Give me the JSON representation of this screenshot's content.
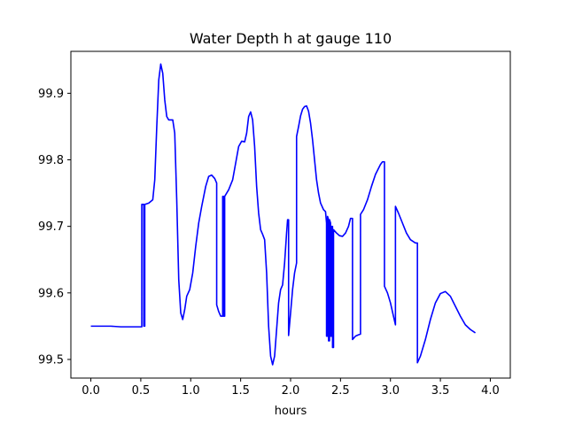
{
  "chart_data": {
    "type": "line",
    "title": "Water Depth h at gauge 110",
    "xlabel": "hours",
    "ylabel": "",
    "xlim": [
      -0.2,
      4.2
    ],
    "ylim": [
      99.472,
      99.963
    ],
    "xticks": [
      0.0,
      0.5,
      1.0,
      1.5,
      2.0,
      2.5,
      3.0,
      3.5,
      4.0
    ],
    "xtick_labels": [
      "0.0",
      "0.5",
      "1.0",
      "1.5",
      "2.0",
      "2.5",
      "3.0",
      "3.5",
      "4.0"
    ],
    "yticks": [
      99.5,
      99.6,
      99.7,
      99.8,
      99.9
    ],
    "ytick_labels": [
      "99.5",
      "99.6",
      "99.7",
      "99.8",
      "99.9"
    ],
    "grid": false,
    "series": [
      {
        "color": "#0000ff",
        "points": [
          [
            0.0,
            99.55
          ],
          [
            0.2,
            99.55
          ],
          [
            0.3,
            99.549
          ],
          [
            0.4,
            99.549
          ],
          [
            0.5,
            99.549
          ],
          [
            0.51,
            99.549
          ],
          [
            0.51,
            99.733
          ],
          [
            0.53,
            99.733
          ],
          [
            0.53,
            99.55
          ],
          [
            0.54,
            99.55
          ],
          [
            0.54,
            99.733
          ],
          [
            0.58,
            99.735
          ],
          [
            0.62,
            99.74
          ],
          [
            0.64,
            99.77
          ],
          [
            0.66,
            99.85
          ],
          [
            0.68,
            99.92
          ],
          [
            0.7,
            99.944
          ],
          [
            0.72,
            99.93
          ],
          [
            0.74,
            99.89
          ],
          [
            0.76,
            99.865
          ],
          [
            0.78,
            99.86
          ],
          [
            0.82,
            99.86
          ],
          [
            0.84,
            99.84
          ],
          [
            0.86,
            99.74
          ],
          [
            0.88,
            99.62
          ],
          [
            0.9,
            99.57
          ],
          [
            0.92,
            99.56
          ],
          [
            0.94,
            99.575
          ],
          [
            0.96,
            99.595
          ],
          [
            0.99,
            99.605
          ],
          [
            1.02,
            99.63
          ],
          [
            1.05,
            99.67
          ],
          [
            1.08,
            99.705
          ],
          [
            1.11,
            99.73
          ],
          [
            1.15,
            99.76
          ],
          [
            1.18,
            99.775
          ],
          [
            1.21,
            99.777
          ],
          [
            1.24,
            99.772
          ],
          [
            1.26,
            99.765
          ],
          [
            1.26,
            99.582
          ],
          [
            1.28,
            99.572
          ],
          [
            1.3,
            99.565
          ],
          [
            1.32,
            99.565
          ],
          [
            1.32,
            99.745
          ],
          [
            1.33,
            99.745
          ],
          [
            1.33,
            99.565
          ],
          [
            1.34,
            99.565
          ],
          [
            1.34,
            99.745
          ],
          [
            1.38,
            99.755
          ],
          [
            1.42,
            99.77
          ],
          [
            1.45,
            99.795
          ],
          [
            1.48,
            99.82
          ],
          [
            1.51,
            99.828
          ],
          [
            1.54,
            99.827
          ],
          [
            1.56,
            99.84
          ],
          [
            1.58,
            99.865
          ],
          [
            1.6,
            99.872
          ],
          [
            1.62,
            99.86
          ],
          [
            1.64,
            99.82
          ],
          [
            1.66,
            99.76
          ],
          [
            1.68,
            99.72
          ],
          [
            1.7,
            99.695
          ],
          [
            1.72,
            99.688
          ],
          [
            1.74,
            99.68
          ],
          [
            1.76,
            99.63
          ],
          [
            1.78,
            99.55
          ],
          [
            1.8,
            99.505
          ],
          [
            1.82,
            99.492
          ],
          [
            1.84,
            99.505
          ],
          [
            1.86,
            99.545
          ],
          [
            1.88,
            99.585
          ],
          [
            1.9,
            99.605
          ],
          [
            1.92,
            99.612
          ],
          [
            1.94,
            99.645
          ],
          [
            1.96,
            99.69
          ],
          [
            1.97,
            99.71
          ],
          [
            1.98,
            99.71
          ],
          [
            1.98,
            99.536
          ],
          [
            2.0,
            99.57
          ],
          [
            2.02,
            99.605
          ],
          [
            2.04,
            99.63
          ],
          [
            2.06,
            99.645
          ],
          [
            2.06,
            99.835
          ],
          [
            2.08,
            99.85
          ],
          [
            2.1,
            99.866
          ],
          [
            2.12,
            99.876
          ],
          [
            2.14,
            99.88
          ],
          [
            2.16,
            99.881
          ],
          [
            2.18,
            99.873
          ],
          [
            2.2,
            99.855
          ],
          [
            2.22,
            99.83
          ],
          [
            2.24,
            99.8
          ],
          [
            2.26,
            99.77
          ],
          [
            2.28,
            99.75
          ],
          [
            2.3,
            99.735
          ],
          [
            2.33,
            99.725
          ],
          [
            2.35,
            99.722
          ],
          [
            2.36,
            99.705
          ],
          [
            2.36,
            99.535
          ],
          [
            2.37,
            99.535
          ],
          [
            2.37,
            99.715
          ],
          [
            2.38,
            99.71
          ],
          [
            2.38,
            99.528
          ],
          [
            2.39,
            99.528
          ],
          [
            2.39,
            99.71
          ],
          [
            2.4,
            99.705
          ],
          [
            2.4,
            99.535
          ],
          [
            2.41,
            99.535
          ],
          [
            2.41,
            99.7
          ],
          [
            2.42,
            99.7
          ],
          [
            2.42,
            99.518
          ],
          [
            2.43,
            99.518
          ],
          [
            2.43,
            99.695
          ],
          [
            2.46,
            99.69
          ],
          [
            2.49,
            99.686
          ],
          [
            2.52,
            99.685
          ],
          [
            2.55,
            99.69
          ],
          [
            2.58,
            99.7
          ],
          [
            2.6,
            99.712
          ],
          [
            2.62,
            99.712
          ],
          [
            2.62,
            99.53
          ],
          [
            2.65,
            99.535
          ],
          [
            2.68,
            99.537
          ],
          [
            2.7,
            99.538
          ],
          [
            2.7,
            99.718
          ],
          [
            2.73,
            99.725
          ],
          [
            2.77,
            99.74
          ],
          [
            2.81,
            99.76
          ],
          [
            2.85,
            99.778
          ],
          [
            2.9,
            99.793
          ],
          [
            2.92,
            99.797
          ],
          [
            2.94,
            99.797
          ],
          [
            2.94,
            99.61
          ],
          [
            2.97,
            99.6
          ],
          [
            3.0,
            99.585
          ],
          [
            3.03,
            99.565
          ],
          [
            3.05,
            99.552
          ],
          [
            3.05,
            99.73
          ],
          [
            3.08,
            99.72
          ],
          [
            3.12,
            99.705
          ],
          [
            3.16,
            99.69
          ],
          [
            3.2,
            99.68
          ],
          [
            3.25,
            99.675
          ],
          [
            3.27,
            99.675
          ],
          [
            3.27,
            99.495
          ],
          [
            3.3,
            99.505
          ],
          [
            3.35,
            99.53
          ],
          [
            3.4,
            99.56
          ],
          [
            3.45,
            99.585
          ],
          [
            3.5,
            99.599
          ],
          [
            3.55,
            99.602
          ],
          [
            3.6,
            99.595
          ],
          [
            3.65,
            99.58
          ],
          [
            3.7,
            99.565
          ],
          [
            3.75,
            99.552
          ],
          [
            3.8,
            99.545
          ],
          [
            3.85,
            99.54
          ]
        ]
      }
    ]
  }
}
